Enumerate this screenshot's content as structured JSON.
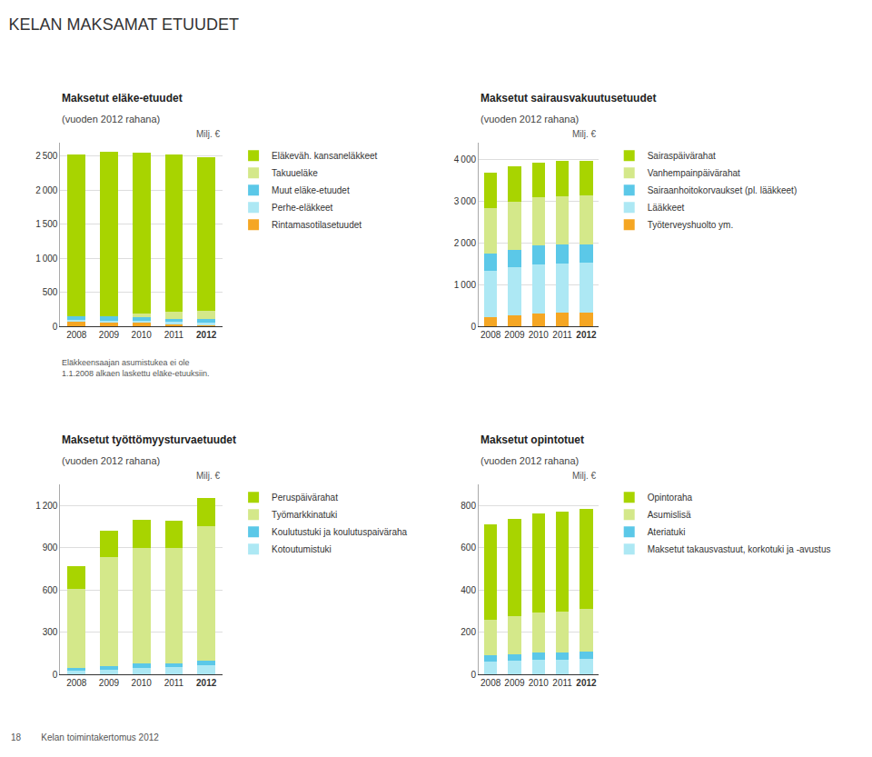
{
  "title": "KELAN MAKSAMAT ETUUDET",
  "annotations": [
    "18        Kelan toimintakertomus 2012"
  ],
  "chart_data": [
    {
      "type": "bar",
      "stacked": true,
      "grid": true,
      "legend": "right",
      "title": "Maksetut eläke-etuudet",
      "subtitle": "(vuoden 2012 rahana)",
      "ylabel": "Milj. €",
      "categories": [
        "2008",
        "2009",
        "2010",
        "2011",
        "2012"
      ],
      "ylim": [
        0,
        2700
      ],
      "yticks": [
        0,
        500,
        {
          "value": 1000,
          "label": "1 000"
        },
        {
          "value": 1500,
          "label": "1 500"
        },
        {
          "value": 2000,
          "label": "2 000"
        },
        {
          "value": 2500,
          "label": "2 500"
        }
      ],
      "series": [
        {
          "name": "Rintamasotilasetuudet",
          "color": "#F5A623",
          "values": [
            65,
            60,
            50,
            40,
            32
          ]
        },
        {
          "name": "Perhe-eläkkeet",
          "color": "#ADE8F4",
          "values": [
            30,
            28,
            27,
            26,
            25
          ]
        },
        {
          "name": "Muut eläke-etuudet",
          "color": "#5BC8E8",
          "values": [
            55,
            60,
            55,
            50,
            48
          ]
        },
        {
          "name": "Takuueläke",
          "color": "#D4E88A",
          "values": [
            0,
            0,
            60,
            100,
            120
          ]
        },
        {
          "name": "Eläkeväh. kansaneläkkeet",
          "color": "#A8D400",
          "values": [
            2380,
            2420,
            2360,
            2310,
            2260
          ]
        }
      ],
      "annotations": [
        "Eläkkeensaajan asumistukea ei ole\n1.1.2008 alkaen laskettu eläke-etuuksiin."
      ]
    },
    {
      "type": "bar",
      "stacked": true,
      "grid": true,
      "legend": "right",
      "title": "Maksetut sairausvakuutusetuudet",
      "subtitle": "(vuoden 2012 rahana)",
      "ylabel": "Milj. €",
      "categories": [
        "2008",
        "2009",
        "2010",
        "2011",
        "2012"
      ],
      "ylim": [
        0,
        4400
      ],
      "yticks": [
        0,
        {
          "value": 1000,
          "label": "1 000"
        },
        {
          "value": 2000,
          "label": "2 000"
        },
        {
          "value": 3000,
          "label": "3 000"
        },
        {
          "value": 4000,
          "label": "4 000"
        }
      ],
      "series": [
        {
          "name": "Työterveyshuolto ym.",
          "color": "#F5A623",
          "values": [
            220,
            270,
            310,
            330,
            340
          ]
        },
        {
          "name": "Lääkkeet",
          "color": "#ADE8F4",
          "values": [
            1120,
            1150,
            1170,
            1180,
            1180
          ]
        },
        {
          "name": "Sairaanhoitokorvaukset (pl. lääkkeet)",
          "color": "#5BC8E8",
          "values": [
            400,
            420,
            450,
            450,
            430
          ]
        },
        {
          "name": "Vanhempainpäivärahat",
          "color": "#D4E88A",
          "values": [
            1100,
            1150,
            1160,
            1160,
            1190
          ]
        },
        {
          "name": "Sairaspäivärahat",
          "color": "#A8D400",
          "values": [
            830,
            830,
            830,
            830,
            830
          ]
        }
      ]
    },
    {
      "type": "bar",
      "stacked": true,
      "grid": true,
      "legend": "right",
      "title": "Maksetut työttömyysturvaetuudet",
      "subtitle": "(vuoden 2012 rahana)",
      "ylabel": "Milj. €",
      "categories": [
        "2008",
        "2009",
        "2010",
        "2011",
        "2012"
      ],
      "ylim": [
        0,
        1350
      ],
      "yticks": [
        0,
        300,
        600,
        900,
        {
          "value": 1200,
          "label": "1 200"
        }
      ],
      "series": [
        {
          "name": "Kotoutumistuki",
          "color": "#ADE8F4",
          "values": [
            30,
            35,
            50,
            55,
            70
          ]
        },
        {
          "name": "Koulutustuki ja koulutuspaiväraha",
          "color": "#5BC8E8",
          "values": [
            20,
            25,
            30,
            25,
            30
          ]
        },
        {
          "name": "Työmarkkinatuki",
          "color": "#D4E88A",
          "values": [
            560,
            770,
            820,
            820,
            950
          ]
        },
        {
          "name": "Peruspäivärahat",
          "color": "#A8D400",
          "values": [
            160,
            190,
            200,
            190,
            200
          ]
        }
      ]
    },
    {
      "type": "bar",
      "stacked": true,
      "grid": true,
      "legend": "right",
      "title": "Maksetut opintotuet",
      "subtitle": "(vuoden 2012 rahana)",
      "ylabel": "Milj. €",
      "categories": [
        "2008",
        "2009",
        "2010",
        "2011",
        "2012"
      ],
      "ylim": [
        0,
        900
      ],
      "yticks": [
        0,
        200,
        400,
        600,
        800
      ],
      "series": [
        {
          "name": "Maksetut takausvastuut, korkotuki ja -avustus",
          "color": "#ADE8F4",
          "values": [
            60,
            65,
            70,
            70,
            75
          ]
        },
        {
          "name": "Ateriatuki",
          "color": "#5BC8E8",
          "values": [
            30,
            32,
            33,
            33,
            34
          ]
        },
        {
          "name": "Asumislisä",
          "color": "#D4E88A",
          "values": [
            170,
            180,
            190,
            195,
            200
          ]
        },
        {
          "name": "Opintoraha",
          "color": "#A8D400",
          "values": [
            450,
            460,
            470,
            470,
            475
          ]
        }
      ]
    }
  ]
}
